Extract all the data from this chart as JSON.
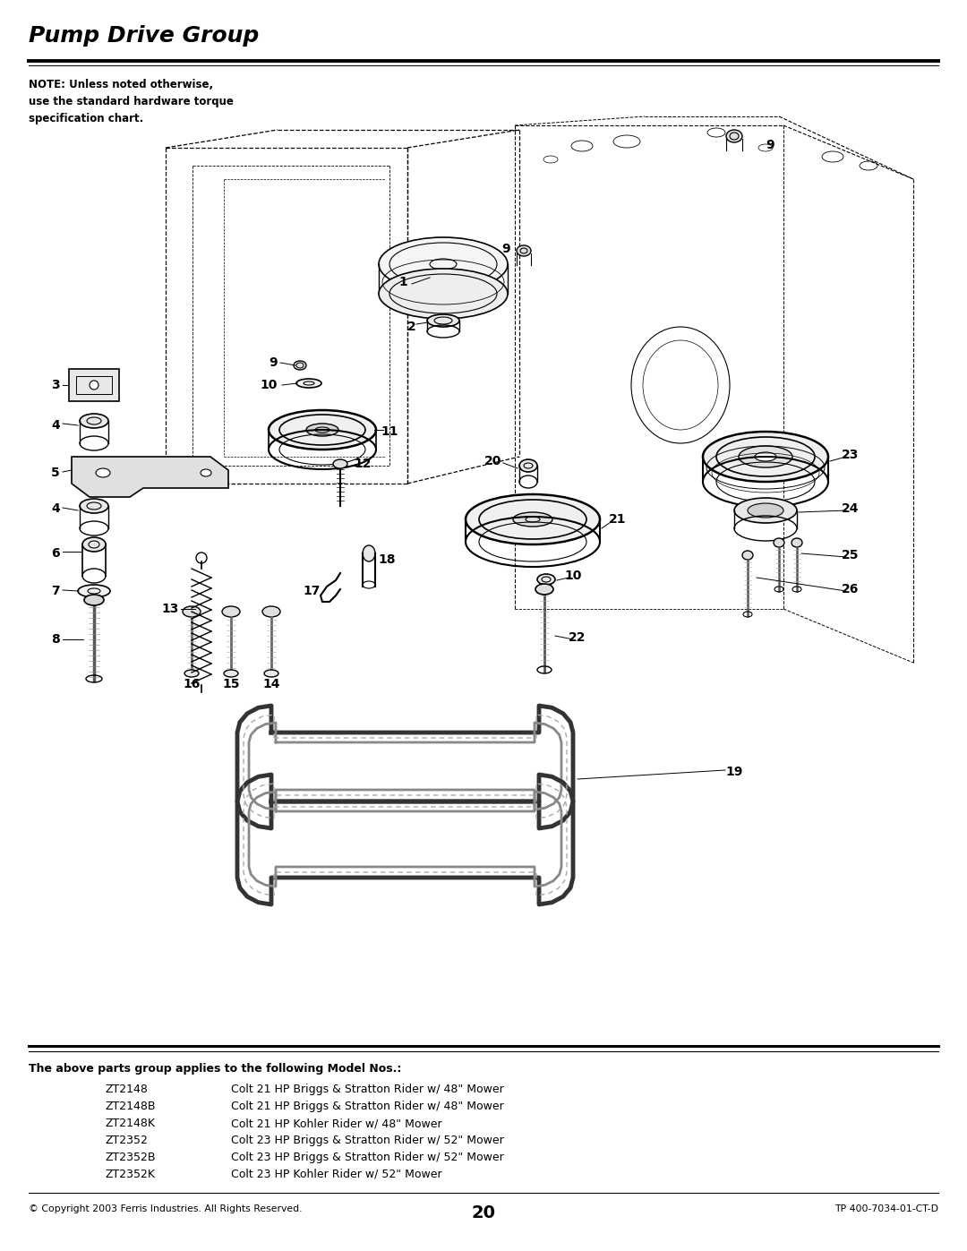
{
  "title": "Pump Drive Group",
  "note_text": "NOTE: Unless noted otherwise,\nuse the standard hardware torque\nspecification chart.",
  "applies_header": "The above parts group applies to the following Model Nos.:",
  "models": [
    [
      "ZT2148",
      "Colt 21 HP Briggs & Stratton Rider w/ 48\" Mower"
    ],
    [
      "ZT2148B",
      "Colt 21 HP Briggs & Stratton Rider w/ 48\" Mower"
    ],
    [
      "ZT2148K",
      "Colt 21 HP Kohler Rider w/ 48\" Mower"
    ],
    [
      "ZT2352",
      "Colt 23 HP Briggs & Stratton Rider w/ 52\" Mower"
    ],
    [
      "ZT2352B",
      "Colt 23 HP Briggs & Stratton Rider w/ 52\" Mower"
    ],
    [
      "ZT2352K",
      "Colt 23 HP Kohler Rider w/ 52\" Mower"
    ]
  ],
  "footer_left": "© Copyright 2003 Ferris Industries. All Rights Reserved.",
  "footer_center": "20",
  "footer_right": "TP 400-7034-01-CT-D",
  "bg_color": "#ffffff",
  "text_color": "#000000",
  "page_width": 10.8,
  "page_height": 13.97,
  "dpi": 100
}
